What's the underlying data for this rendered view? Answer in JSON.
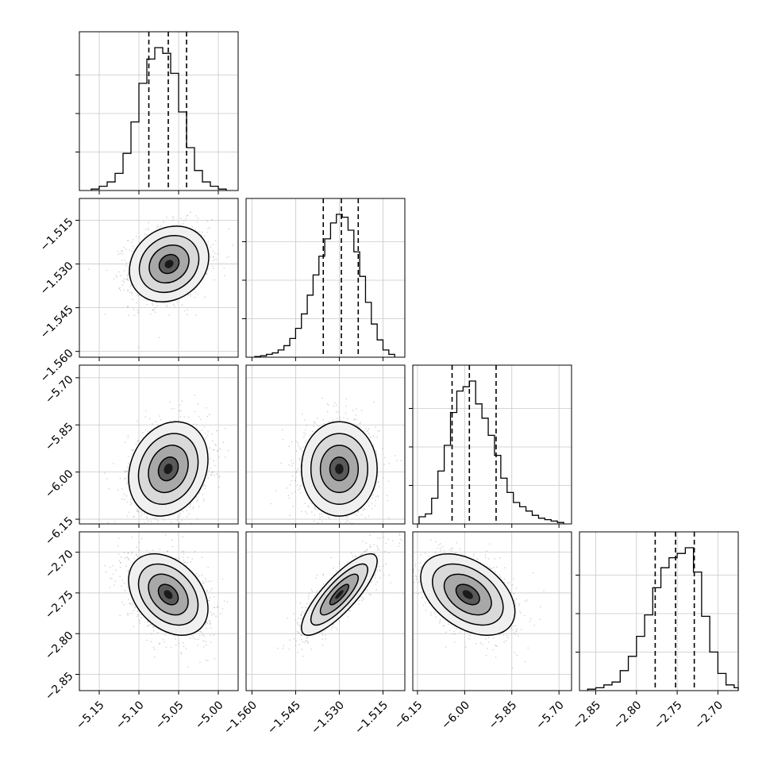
{
  "chart_data": {
    "type": "corner",
    "grid": true,
    "parameters": [
      {
        "range": [
          -5.175,
          -4.975
        ],
        "ticks": [
          -5.15,
          -5.1,
          -5.05,
          -5.0
        ],
        "tick_labels": [
          "−5.15",
          "−5.10",
          "−5.05",
          "−5.00"
        ],
        "quantiles": [
          -5.0875,
          -5.063,
          -5.04
        ]
      },
      {
        "range": [
          -1.562,
          -1.5075
        ],
        "ticks": [
          -1.56,
          -1.545,
          -1.53,
          -1.515
        ],
        "tick_labels": [
          "−1.560",
          "−1.545",
          "−1.530",
          "−1.515"
        ],
        "quantiles": [
          -1.5355,
          -1.5293,
          -1.5235
        ]
      },
      {
        "range": [
          -6.165,
          -5.66
        ],
        "ticks": [
          -6.15,
          -6.0,
          -5.85,
          -5.7
        ],
        "tick_labels": [
          "−6.15",
          "−6.00",
          "−5.85",
          "−5.70"
        ],
        "quantiles": [
          -6.04,
          -5.985,
          -5.9
        ]
      },
      {
        "range": [
          -2.87,
          -2.675
        ],
        "ticks": [
          -2.85,
          -2.8,
          -2.75,
          -2.7
        ],
        "tick_labels": [
          "−2.85",
          "−2.80",
          "−2.75",
          "−2.70"
        ],
        "quantiles": [
          -2.777,
          -2.752,
          -2.729
        ]
      }
    ],
    "x_axis_labels": [
      [
        "−5.15",
        "−5.10",
        "−5.05",
        "−5.00"
      ],
      [
        "−1.560",
        "−1.545",
        "−1.530",
        "−1.515"
      ],
      [
        "−6.15",
        "−6.00",
        "−5.85",
        "−5.70"
      ],
      [
        "−2.85",
        "−2.80",
        "−2.75",
        "−2.70"
      ]
    ],
    "y_axis_labels": [
      [
        "−1.515",
        "−1.530",
        "−1.545",
        "−1.560"
      ],
      [
        "−5.70",
        "−5.85",
        "−6.00",
        "−6.15"
      ],
      [
        "−2.70",
        "−2.75",
        "−2.80",
        "−2.85"
      ]
    ],
    "histograms": [
      {
        "param": 0,
        "bin_edges": [
          -5.16,
          -5.15,
          -5.14,
          -5.13,
          -5.12,
          -5.11,
          -5.1,
          -5.09,
          -5.08,
          -5.07,
          -5.06,
          -5.05,
          -5.04,
          -5.03,
          -5.02,
          -5.01,
          -5.0,
          -4.99
        ],
        "counts": [
          1,
          3,
          6,
          12,
          26,
          48,
          75,
          92,
          100,
          96,
          82,
          55,
          30,
          14,
          6,
          3,
          1
        ]
      },
      {
        "param": 1,
        "bin_edges": [
          -1.559,
          -1.557,
          -1.555,
          -1.553,
          -1.551,
          -1.549,
          -1.547,
          -1.545,
          -1.543,
          -1.541,
          -1.539,
          -1.537,
          -1.535,
          -1.533,
          -1.531,
          -1.529,
          -1.527,
          -1.525,
          -1.523,
          -1.521,
          -1.519,
          -1.517,
          -1.515,
          -1.513,
          -1.511
        ],
        "counts": [
          0.5,
          1,
          2,
          3,
          5,
          8,
          13,
          20,
          30,
          43,
          57,
          70,
          82,
          93,
          99,
          97,
          88,
          73,
          56,
          38,
          23,
          12,
          5,
          2
        ]
      },
      {
        "param": 2,
        "bin_edges": [
          -6.145,
          -6.125,
          -6.105,
          -6.085,
          -6.065,
          -6.045,
          -6.025,
          -6.005,
          -5.985,
          -5.965,
          -5.945,
          -5.925,
          -5.905,
          -5.885,
          -5.865,
          -5.845,
          -5.825,
          -5.805,
          -5.785,
          -5.765,
          -5.745,
          -5.725,
          -5.705,
          -5.685
        ],
        "counts": [
          5,
          7,
          18,
          37,
          55,
          78,
          93,
          96,
          100,
          84,
          74,
          62,
          48,
          32,
          22,
          15,
          12,
          9,
          6,
          4,
          3,
          2,
          1
        ]
      },
      {
        "param": 3,
        "bin_edges": [
          -2.86,
          -2.85,
          -2.84,
          -2.83,
          -2.82,
          -2.81,
          -2.8,
          -2.79,
          -2.78,
          -2.77,
          -2.76,
          -2.75,
          -2.74,
          -2.73,
          -2.72,
          -2.71,
          -2.7,
          -2.69,
          -2.68,
          -2.675
        ],
        "counts": [
          1,
          2,
          4,
          6,
          14,
          24,
          38,
          53,
          72,
          86,
          93,
          96,
          100,
          83,
          52,
          27,
          12,
          4,
          2
        ]
      }
    ],
    "joint_panels": [
      {
        "row": 1,
        "col": 0,
        "mean": [
          -5.062,
          -1.53
        ],
        "sd": [
          0.025,
          0.0065
        ],
        "rho": 0.18
      },
      {
        "row": 2,
        "col": 0,
        "mean": [
          -5.063,
          -5.99
        ],
        "sd": [
          0.025,
          0.075
        ],
        "rho": 0.2
      },
      {
        "row": 2,
        "col": 1,
        "mean": [
          -1.53,
          -5.99
        ],
        "sd": [
          0.0065,
          0.075
        ],
        "rho": 0.0
      },
      {
        "row": 3,
        "col": 0,
        "mean": [
          -5.063,
          -2.752
        ],
        "sd": [
          0.025,
          0.025
        ],
        "rho": -0.35
      },
      {
        "row": 3,
        "col": 1,
        "mean": [
          -1.53,
          -2.752
        ],
        "sd": [
          0.0065,
          0.025
        ],
        "rho": 0.82
      },
      {
        "row": 3,
        "col": 2,
        "mean": [
          -5.99,
          -2.752
        ],
        "sd": [
          0.075,
          0.025
        ],
        "rho": -0.42
      }
    ],
    "contour_levels_sigma": [
      0.5,
      1.0,
      1.5,
      2.0
    ]
  }
}
